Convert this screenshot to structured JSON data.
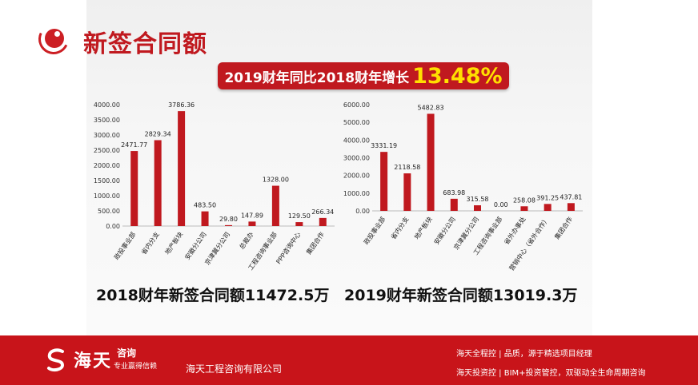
{
  "slide": {
    "title": "新签合同额",
    "growth_text": "2019财年同比2018财年增长",
    "growth_value": "13.48%",
    "summary_2018": "2018财年新签合同额11472.5万",
    "summary_2019": "2019财年新签合同额13019.3万"
  },
  "colors": {
    "accent": "#c0191f",
    "bar": "#c0191f",
    "highlight": "#ffe000",
    "footer": "#c8141a"
  },
  "footer": {
    "brand": "海天",
    "brand_sub": "咨询",
    "brand_slogan": "专业赢得信赖",
    "company": "海天工程咨询有限公司",
    "line1": "海天全程控 | 品质，源于精选项目经理",
    "line2": "海天投资控 | BIM+投资管控，双驱动全生命周期咨询"
  },
  "chart_data": [
    {
      "type": "bar",
      "categories": [
        "政投事业部",
        "省内分支",
        "地产板块",
        "安徽分公司",
        "京津冀分公司",
        "总裁办",
        "工程咨询事业部",
        "PPP咨询中心",
        "集团合作"
      ],
      "values": [
        2471.77,
        2829.34,
        3786.36,
        483.5,
        29.8,
        147.89,
        1328.0,
        129.5,
        266.34
      ],
      "value_labels": [
        "2471.77",
        "2829.34",
        "3786.36",
        "483.50",
        "29.80",
        "147.89",
        "1328.00",
        "129.50",
        "266.34"
      ],
      "ylim": [
        0,
        4000
      ],
      "yticks": [
        "0.00",
        "500.00",
        "1000.00",
        "1500.00",
        "2000.00",
        "2500.00",
        "3000.00",
        "3500.00",
        "4000.00"
      ],
      "grid": false,
      "legend": "none"
    },
    {
      "type": "bar",
      "categories": [
        "政投事业部",
        "省内分支",
        "地产板块",
        "安徽分公司",
        "京津冀分公司",
        "工程咨询事业部",
        "省外办事处",
        "营销中心（省外合作）",
        "集团合作"
      ],
      "values": [
        3331.19,
        2118.58,
        5482.83,
        683.98,
        315.58,
        0.0,
        258.08,
        391.25,
        437.81
      ],
      "value_labels": [
        "3331.19",
        "2118.58",
        "5482.83",
        "683.98",
        "315.58",
        "0.00",
        "258.08",
        "391.25",
        "437.81"
      ],
      "ylim": [
        0,
        6000
      ],
      "yticks": [
        "0.00",
        "1000.00",
        "2000.00",
        "3000.00",
        "4000.00",
        "5000.00",
        "6000.00"
      ],
      "grid": false,
      "legend": "none"
    }
  ]
}
